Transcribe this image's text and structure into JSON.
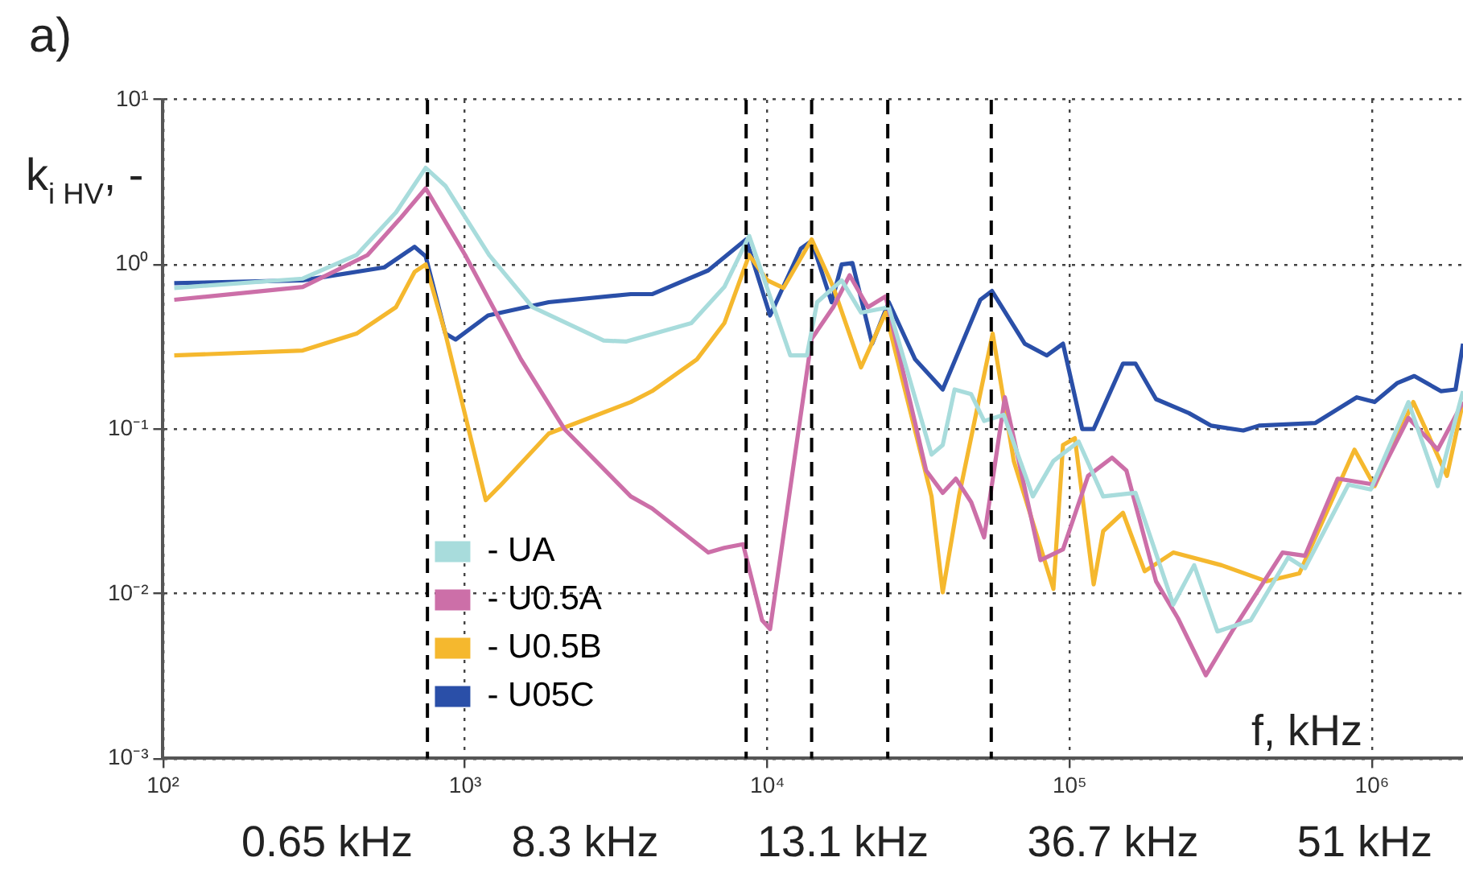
{
  "chart_data": {
    "type": "line",
    "title": "a)",
    "xlabel": "f, kHz",
    "ylabel": "k$_{i HV}$, -",
    "log": "xy",
    "grid": true,
    "legend": "bottom left",
    "marker": "none",
    "line_style": "solid",
    "xlim": [
      100,
      2000000
    ],
    "ylim": [
      0.001,
      10
    ],
    "xticks": [
      {
        "value": 100,
        "label": "10²"
      },
      {
        "value": 1000,
        "label": "10³"
      },
      {
        "value": 10000,
        "label": "10⁴"
      },
      {
        "value": 100000,
        "label": "10⁵"
      },
      {
        "value": 1000000,
        "label": "10⁶"
      }
    ],
    "yticks": [
      {
        "value": 0.001,
        "label": "10⁻³"
      },
      {
        "value": 0.01,
        "label": "10⁻²"
      },
      {
        "value": 0.1,
        "label": "10⁻¹"
      },
      {
        "value": 1,
        "label": "10⁰"
      },
      {
        "value": 10,
        "label": "10¹"
      }
    ],
    "series": [
      {
        "name": "- UA",
        "color": "#a8dcdc",
        "x": [
          109,
          290,
          437,
          590,
          740,
          860,
          1200,
          1670,
          2870,
          3400,
          5600,
          7200,
          8700,
          11900,
          13500,
          14600,
          17600,
          20400,
          25200,
          34900,
          38000,
          41600,
          47200,
          52100,
          60500,
          75500,
          88300,
          107000,
          129000,
          165000,
          220000,
          258000,
          308000,
          397000,
          528000,
          600000,
          835000,
          990000,
          1320000,
          1650000,
          2000000
        ],
        "values": [
          0.72,
          0.82,
          1.14,
          2.07,
          3.86,
          3.0,
          1.14,
          0.55,
          0.345,
          0.34,
          0.44,
          0.73,
          1.49,
          0.28,
          0.28,
          0.59,
          0.8,
          0.51,
          0.55,
          0.07,
          0.08,
          0.174,
          0.163,
          0.112,
          0.122,
          0.039,
          0.064,
          0.084,
          0.039,
          0.041,
          0.0086,
          0.0149,
          0.0059,
          0.0069,
          0.0166,
          0.0143,
          0.046,
          0.043,
          0.146,
          0.045,
          0.17
        ]
      },
      {
        "name": "- U0.5A",
        "color": "#cc6fa8",
        "x": [
          109,
          290,
          475,
          615,
          740,
          1000,
          1530,
          2130,
          3530,
          4150,
          6370,
          7200,
          8300,
          9600,
          10200,
          14000,
          16500,
          18700,
          21500,
          24600,
          33500,
          38000,
          42000,
          47200,
          52100,
          61000,
          80000,
          95000,
          115000,
          138000,
          154000,
          193000,
          228000,
          282000,
          348000,
          506000,
          600000,
          770000,
          1020000,
          1320000,
          1650000,
          2000000
        ],
        "values": [
          0.61,
          0.73,
          1.14,
          1.94,
          2.9,
          1.14,
          0.265,
          0.1,
          0.039,
          0.033,
          0.0178,
          0.019,
          0.02,
          0.0069,
          0.0061,
          0.353,
          0.55,
          0.86,
          0.55,
          0.64,
          0.056,
          0.041,
          0.05,
          0.036,
          0.022,
          0.156,
          0.016,
          0.0186,
          0.052,
          0.067,
          0.056,
          0.0119,
          0.0071,
          0.0032,
          0.0061,
          0.0178,
          0.017,
          0.05,
          0.046,
          0.117,
          0.075,
          0.146
        ]
      },
      {
        "name": "- U0.5B",
        "color": "#f5b82e",
        "x": [
          109,
          290,
          437,
          590,
          680,
          740,
          860,
          1170,
          1300,
          1890,
          3530,
          4150,
          5840,
          7200,
          8700,
          10000,
          11300,
          14000,
          16500,
          20400,
          24600,
          34900,
          38000,
          43000,
          55600,
          65300,
          88300,
          95000,
          104000,
          120000,
          129000,
          150000,
          177000,
          220000,
          318000,
          448000,
          575000,
          875000,
          1020000,
          1370000,
          1770000,
          2000000
        ],
        "values": [
          0.28,
          0.3,
          0.38,
          0.55,
          0.9,
          1.0,
          0.38,
          0.037,
          0.045,
          0.094,
          0.146,
          0.17,
          0.265,
          0.44,
          1.14,
          0.8,
          0.72,
          1.42,
          0.73,
          0.237,
          0.51,
          0.039,
          0.0102,
          0.039,
          0.38,
          0.064,
          0.0107,
          0.08,
          0.088,
          0.0114,
          0.024,
          0.031,
          0.0137,
          0.0178,
          0.0149,
          0.0119,
          0.0133,
          0.075,
          0.045,
          0.146,
          0.052,
          0.146
        ]
      },
      {
        "name": "- U05C",
        "color": "#2a4fa8",
        "x": [
          109,
          290,
          540,
          680,
          740,
          860,
          930,
          1190,
          1890,
          3530,
          4150,
          6370,
          8500,
          10200,
          12900,
          14000,
          16300,
          17600,
          19100,
          22200,
          25200,
          30800,
          38000,
          50600,
          55300,
          71000,
          84000,
          95000,
          110000,
          120000,
          150000,
          165000,
          193000,
          248000,
          293000,
          375000,
          423000,
          650000,
          890000,
          1020000,
          1210000,
          1380000,
          1690000,
          1890000,
          2000000
        ],
        "values": [
          0.77,
          0.8,
          0.96,
          1.28,
          1.12,
          0.38,
          0.35,
          0.49,
          0.59,
          0.66,
          0.66,
          0.92,
          1.42,
          0.49,
          1.25,
          1.39,
          0.59,
          1.0,
          1.02,
          0.33,
          0.59,
          0.265,
          0.174,
          0.61,
          0.69,
          0.33,
          0.28,
          0.33,
          0.1,
          0.1,
          0.25,
          0.25,
          0.152,
          0.125,
          0.105,
          0.098,
          0.105,
          0.109,
          0.156,
          0.146,
          0.19,
          0.21,
          0.17,
          0.174,
          0.33
        ]
      }
    ],
    "ref_lines": [
      {
        "axis": "x",
        "value": 750,
        "color": "#000000",
        "line_style": "dashed"
      },
      {
        "axis": "x",
        "value": 8500,
        "color": "#000000",
        "line_style": "dashed"
      },
      {
        "axis": "x",
        "value": 14000,
        "color": "#000000",
        "line_style": "dashed"
      },
      {
        "axis": "x",
        "value": 25000,
        "color": "#000000",
        "line_style": "dashed"
      },
      {
        "axis": "x",
        "value": 55000,
        "color": "#000000",
        "line_style": "dashed"
      }
    ],
    "annotations": [
      "0.65 kHz",
      "8.3 kHz",
      "13.1 kHz",
      "36.7 kHz",
      "51 kHz"
    ]
  }
}
